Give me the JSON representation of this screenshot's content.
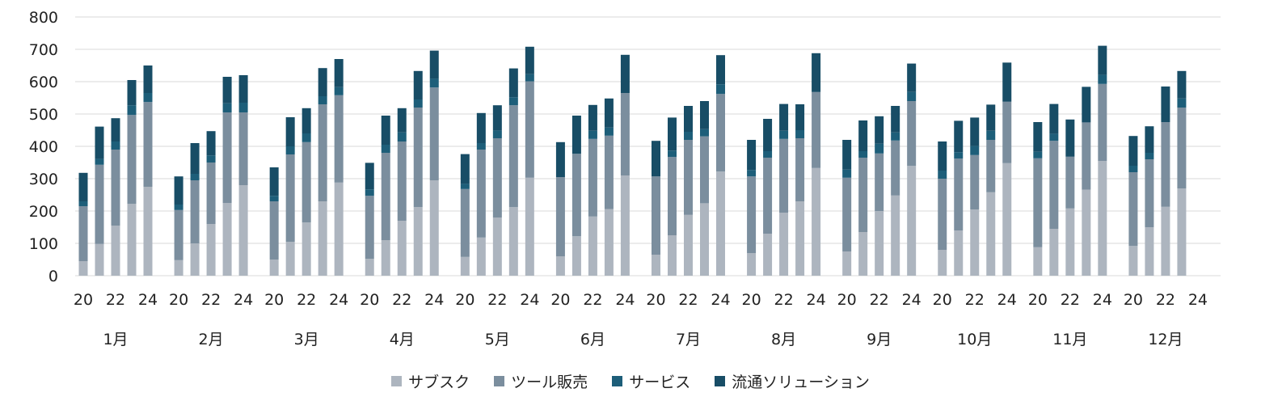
{
  "chart_data": {
    "type": "bar",
    "stacked": true,
    "ylim": [
      0,
      800
    ],
    "yticks": [
      0,
      100,
      200,
      300,
      400,
      500,
      600,
      700,
      800
    ],
    "grid": true,
    "legend_position": "bottom",
    "groups": [
      "1月",
      "2月",
      "3月",
      "4月",
      "5月",
      "6月",
      "7月",
      "8月",
      "9月",
      "10月",
      "11月",
      "12月"
    ],
    "x_tick_labels": [
      "20",
      "22",
      "24"
    ],
    "years_per_group": 5,
    "series": [
      {
        "name": "サブスク",
        "color": "#adb5bf",
        "values": [
          [
            45,
            98,
            155,
            222,
            275
          ],
          [
            48,
            100,
            160,
            225,
            280
          ],
          [
            50,
            105,
            165,
            230,
            288
          ],
          [
            52,
            110,
            170,
            212,
            295
          ],
          [
            58,
            118,
            180,
            212,
            303
          ],
          [
            60,
            122,
            183,
            206,
            310
          ],
          [
            65,
            125,
            188,
            224,
            322
          ],
          [
            70,
            130,
            195,
            230,
            333
          ],
          [
            75,
            135,
            200,
            248,
            340
          ],
          [
            80,
            140,
            205,
            258,
            348
          ],
          [
            88,
            145,
            208,
            266,
            355
          ],
          [
            92,
            150,
            213,
            270,
            0
          ]
        ]
      },
      {
        "name": "ツール販売",
        "color": "#7b8e9e",
        "values": [
          [
            170,
            245,
            235,
            275,
            262
          ],
          [
            155,
            195,
            190,
            280,
            225
          ],
          [
            180,
            270,
            248,
            300,
            270
          ],
          [
            195,
            270,
            245,
            308,
            287
          ],
          [
            210,
            272,
            245,
            315,
            298
          ],
          [
            245,
            255,
            240,
            227,
            255
          ],
          [
            242,
            242,
            232,
            207,
            240
          ],
          [
            237,
            235,
            228,
            195,
            235
          ],
          [
            228,
            230,
            178,
            170,
            200
          ],
          [
            220,
            222,
            168,
            162,
            190
          ],
          [
            275,
            272,
            160,
            208,
            238
          ],
          [
            228,
            210,
            262,
            250,
            0
          ]
        ]
      },
      {
        "name": "サービス",
        "color": "#1d5e79",
        "values": [
          [
            15,
            18,
            25,
            30,
            28
          ],
          [
            17,
            20,
            22,
            28,
            30
          ],
          [
            17,
            25,
            27,
            25,
            25
          ],
          [
            20,
            25,
            28,
            25,
            27
          ],
          [
            16,
            20,
            24,
            25,
            22
          ],
          [
            0,
            0,
            25,
            25,
            0
          ],
          [
            0,
            20,
            25,
            22,
            30
          ],
          [
            20,
            20,
            25,
            25,
            0
          ],
          [
            25,
            20,
            30,
            25,
            28
          ],
          [
            25,
            20,
            28,
            28,
            0
          ],
          [
            20,
            22,
            0,
            0,
            28
          ],
          [
            20,
            20,
            0,
            28,
            0
          ]
        ]
      },
      {
        "name": "流通ソリューション",
        "color": "#184d66",
        "values": [
          [
            88,
            100,
            72,
            78,
            85
          ],
          [
            87,
            95,
            75,
            82,
            85
          ],
          [
            88,
            90,
            78,
            87,
            87
          ],
          [
            82,
            90,
            75,
            88,
            87
          ],
          [
            92,
            93,
            78,
            89,
            85
          ],
          [
            108,
            118,
            80,
            90,
            118
          ],
          [
            110,
            102,
            80,
            87,
            90
          ],
          [
            93,
            100,
            83,
            80,
            120
          ],
          [
            92,
            95,
            85,
            82,
            88
          ],
          [
            90,
            97,
            88,
            81,
            121
          ],
          [
            92,
            92,
            115,
            110,
            90
          ],
          [
            92,
            82,
            110,
            85,
            0
          ]
        ]
      }
    ]
  }
}
